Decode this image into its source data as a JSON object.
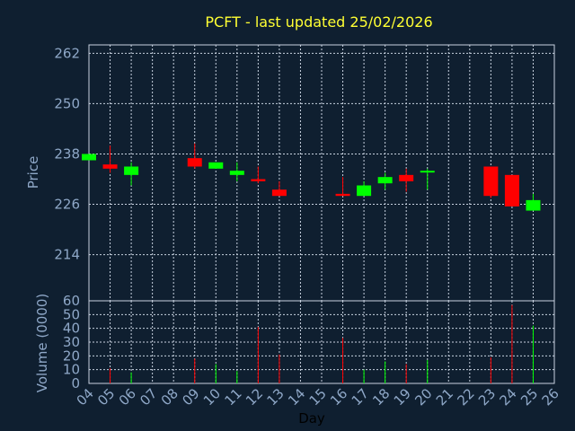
{
  "chart_data": {
    "type": "candlestick",
    "title": "PCFT - last updated 25/02/2026",
    "xlabel": "Day",
    "price_ylabel": "Price",
    "volume_ylabel": "Volume (0000)",
    "x_ticks": [
      "04",
      "05",
      "06",
      "07",
      "08",
      "09",
      "10",
      "11",
      "12",
      "13",
      "14",
      "15",
      "16",
      "17",
      "18",
      "19",
      "20",
      "21",
      "22",
      "23",
      "24",
      "25",
      "26"
    ],
    "price_ticks": [
      214,
      226,
      238,
      250,
      262
    ],
    "price_ylim": [
      203,
      264
    ],
    "volume_ticks": [
      0,
      10,
      20,
      30,
      40,
      50,
      60
    ],
    "volume_ylim": [
      0,
      60
    ],
    "colors": {
      "up": "#00ff00",
      "down": "#ff0000",
      "title": "#ffff33",
      "axis": "#8fa8c8",
      "background": "#0f1f30"
    },
    "candles": [
      {
        "day": "04",
        "open": 236.5,
        "close": 238.0,
        "high": 238.0,
        "low": 236.5,
        "volume": 0
      },
      {
        "day": "05",
        "open": 235.5,
        "close": 234.5,
        "high": 240.0,
        "low": 233.5,
        "volume": 11
      },
      {
        "day": "06",
        "open": 233.0,
        "close": 235.0,
        "high": 236.0,
        "low": 230.5,
        "volume": 8
      },
      {
        "day": "09",
        "open": 237.0,
        "close": 235.0,
        "high": 240.5,
        "low": 234.5,
        "volume": 18
      },
      {
        "day": "10",
        "open": 234.5,
        "close": 236.0,
        "high": 236.0,
        "low": 234.5,
        "volume": 14
      },
      {
        "day": "11",
        "open": 233.0,
        "close": 234.0,
        "high": 236.0,
        "low": 231.5,
        "volume": 9
      },
      {
        "day": "12",
        "open": 232.0,
        "close": 231.5,
        "high": 235.0,
        "low": 231.0,
        "volume": 41
      },
      {
        "day": "13",
        "open": 229.5,
        "close": 228.0,
        "high": 231.5,
        "low": 228.0,
        "volume": 21
      },
      {
        "day": "16",
        "open": 228.5,
        "close": 228.0,
        "high": 232.5,
        "low": 228.0,
        "volume": 33
      },
      {
        "day": "17",
        "open": 228.0,
        "close": 230.5,
        "high": 231.5,
        "low": 228.0,
        "volume": 10
      },
      {
        "day": "18",
        "open": 231.0,
        "close": 232.5,
        "high": 233.5,
        "low": 229.5,
        "volume": 16
      },
      {
        "day": "19",
        "open": 233.0,
        "close": 231.5,
        "high": 234.5,
        "low": 229.0,
        "volume": 14
      },
      {
        "day": "20",
        "open": 233.8,
        "close": 234.0,
        "high": 234.5,
        "low": 229.5,
        "volume": 17
      },
      {
        "day": "23",
        "open": 235.0,
        "close": 228.0,
        "high": 235.0,
        "low": 227.5,
        "volume": 19
      },
      {
        "day": "24",
        "open": 233.0,
        "close": 225.5,
        "high": 233.0,
        "low": 225.5,
        "volume": 57
      },
      {
        "day": "25",
        "open": 224.5,
        "close": 227.0,
        "high": 228.5,
        "low": 224.5,
        "volume": 42
      }
    ]
  }
}
